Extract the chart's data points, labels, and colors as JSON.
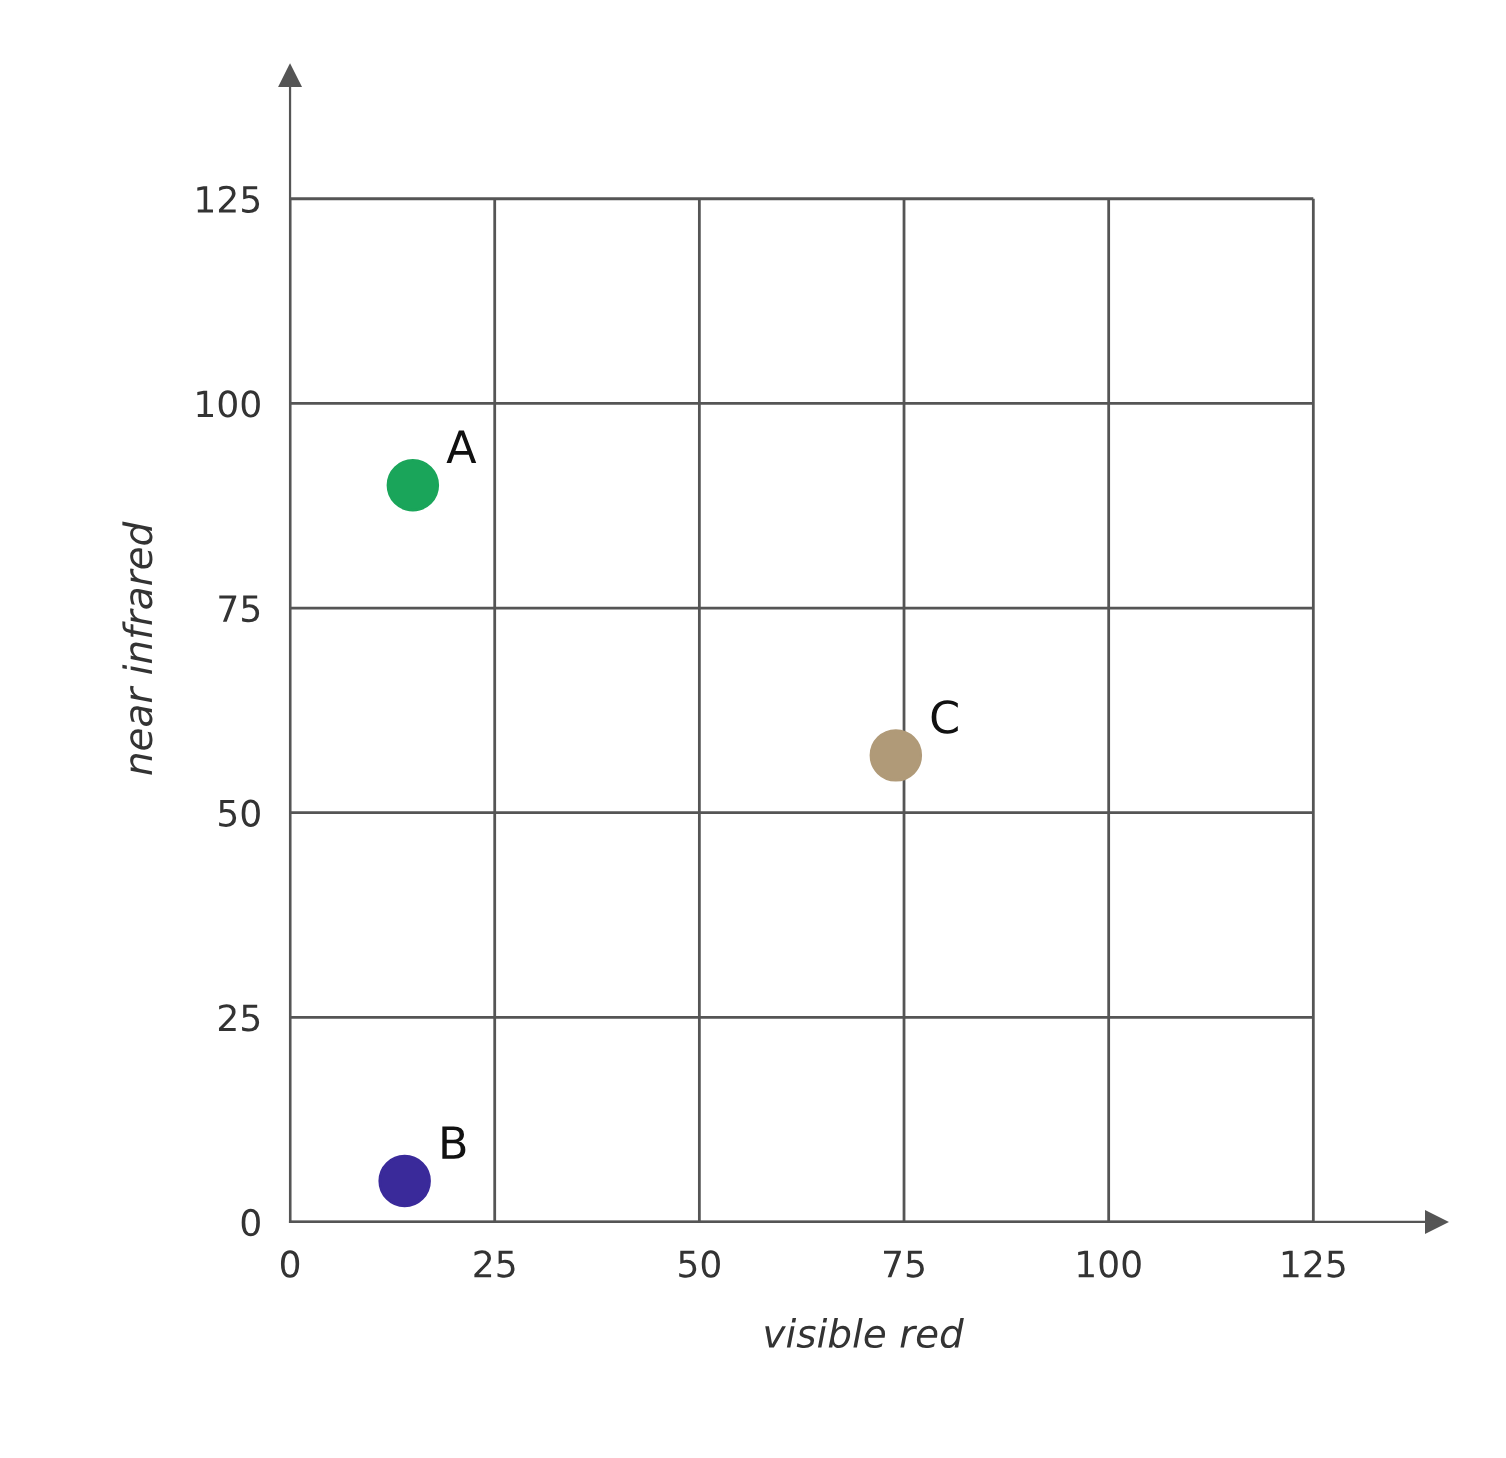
{
  "chart_data": {
    "type": "scatter",
    "xlabel": "visible red",
    "ylabel": "near infrared",
    "series": [
      {
        "name": "A",
        "color": "#1aa55a",
        "x": [
          15
        ],
        "values": [
          90
        ]
      },
      {
        "name": "B",
        "color": "#3a2a9a",
        "x": [
          14
        ],
        "values": [
          5
        ]
      },
      {
        "name": "C",
        "color": "#b09a78",
        "x": [
          74
        ],
        "values": [
          57
        ]
      }
    ],
    "xlim": [
      0,
      140
    ],
    "ylim": [
      0,
      140
    ],
    "xticks": [
      0,
      25,
      50,
      75,
      100,
      125
    ],
    "yticks": [
      0,
      25,
      50,
      75,
      100,
      125
    ],
    "grid": true,
    "marker": "circle",
    "legend": false
  }
}
